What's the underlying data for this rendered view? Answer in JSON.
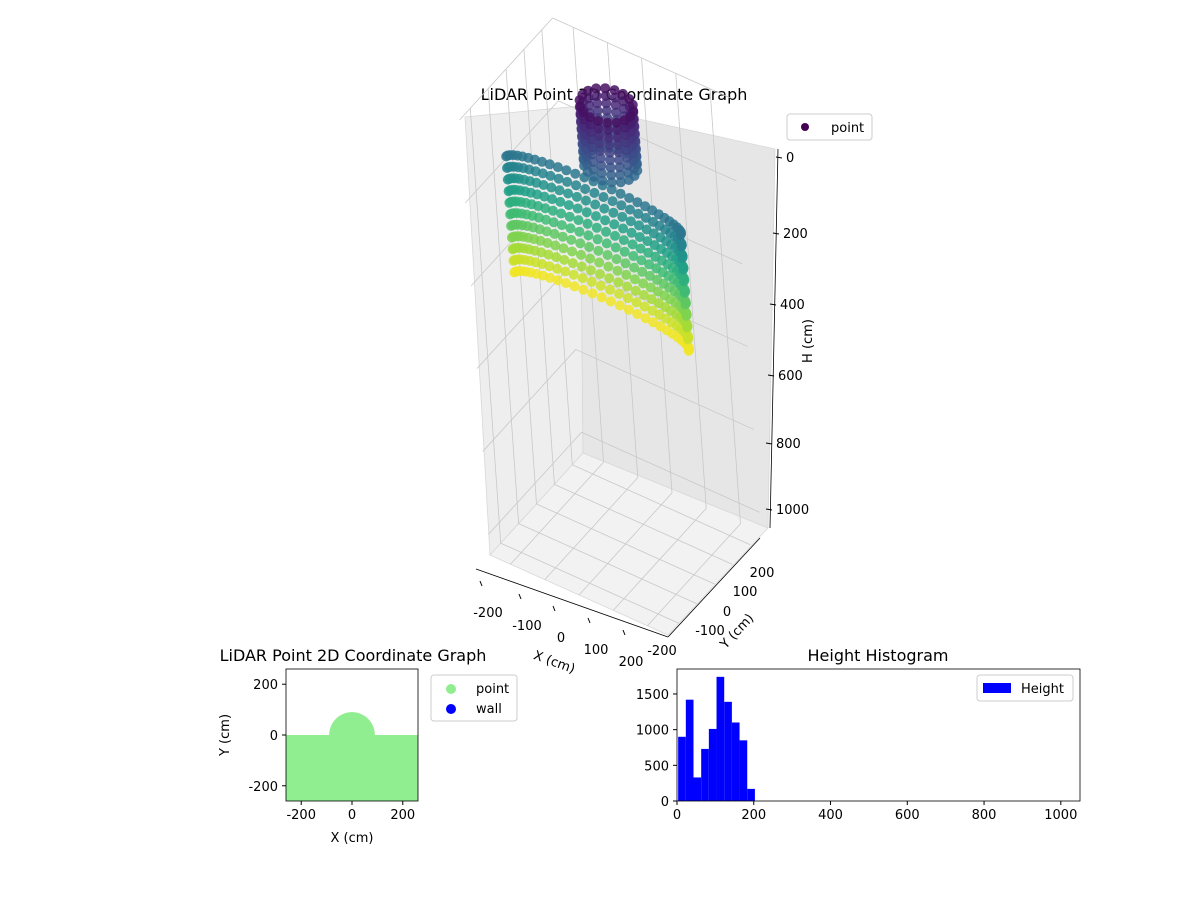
{
  "chart_data": [
    {
      "type": "scatter3d",
      "title": "LiDAR Point 3D Coordinate Graph",
      "xlabel": "X (cm)",
      "ylabel": "Y (cm)",
      "zlabel": "H (cm)",
      "xlim": [
        -260,
        260
      ],
      "ylim": [
        -260,
        260
      ],
      "zlim": [
        1050,
        0
      ],
      "xticks": [
        "-200",
        "-100",
        "0",
        "100",
        "200"
      ],
      "yticks": [
        "-200",
        "-100",
        "0",
        "100",
        "200"
      ],
      "zticks": [
        "0",
        "200",
        "400",
        "600",
        "800",
        "1000"
      ],
      "colormap": "viridis",
      "legend": [
        "point"
      ],
      "legend_loc": "upper right",
      "grid": true,
      "series": [
        {
          "name": "point",
          "description_shape": "half-cylinder wall arc (radius ~260, H 190-470) with a central column (radius ~70, H 0-180)",
          "wall": {
            "radius": 260,
            "h_range": [
              190,
              470
            ],
            "theta_deg": [
              0,
              180
            ]
          },
          "column": {
            "radius": 70,
            "h_range": [
              0,
              180
            ]
          }
        }
      ]
    },
    {
      "type": "scatter",
      "title": "LiDAR Point 2D Coordinate Graph",
      "xlabel": "X (cm)",
      "ylabel": "Y (cm)",
      "xlim": [
        -260,
        260
      ],
      "ylim": [
        -260,
        260
      ],
      "xticks": [
        "-200",
        "0",
        "200"
      ],
      "yticks": [
        "200",
        "0",
        "-200"
      ],
      "legend": [
        "point",
        "wall"
      ],
      "legend_loc": "outside right",
      "series": [
        {
          "name": "point",
          "color": "#90ee90",
          "region": "filled area y <= 0 plus semicircle bump radius 90 at x=0"
        },
        {
          "name": "wall",
          "color": "#0000ff"
        }
      ]
    },
    {
      "type": "bar",
      "title": "Height Histogram",
      "xlabel": "",
      "ylabel": "",
      "xlim": [
        0,
        1050
      ],
      "ylim": [
        0,
        1850
      ],
      "xticks": [
        "0",
        "200",
        "400",
        "600",
        "800",
        "1000"
      ],
      "yticks": [
        "0",
        "500",
        "1000",
        "1500"
      ],
      "legend": [
        "Height"
      ],
      "legend_loc": "upper right",
      "color": "#0000ff",
      "bin_width": 20,
      "bins": [
        {
          "x0": 0,
          "count": 900
        },
        {
          "x0": 20,
          "count": 1420
        },
        {
          "x0": 40,
          "count": 330
        },
        {
          "x0": 60,
          "count": 730
        },
        {
          "x0": 80,
          "count": 1010
        },
        {
          "x0": 100,
          "count": 1740
        },
        {
          "x0": 120,
          "count": 1390
        },
        {
          "x0": 140,
          "count": 1100
        },
        {
          "x0": 160,
          "count": 850
        },
        {
          "x0": 180,
          "count": 170
        }
      ]
    }
  ]
}
